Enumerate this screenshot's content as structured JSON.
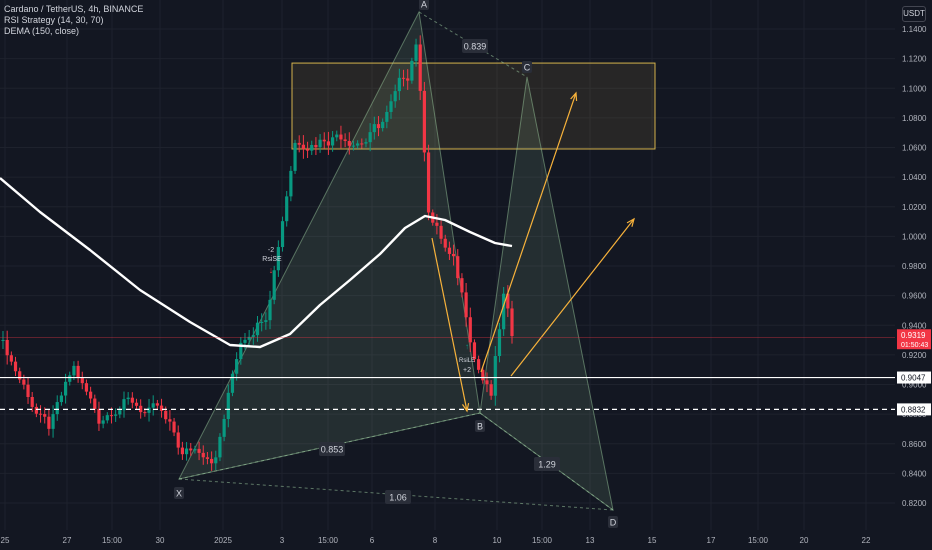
{
  "header": {
    "title": "Cardano / TetherUS, 4h, BINANCE",
    "indicator1": "RSI Strategy (14, 30, 70)",
    "indicator2": "DEMA (150, close)",
    "currency": "USDT"
  },
  "chart_data": {
    "type": "candlestick",
    "y_axis": {
      "range": [
        0.81,
        1.16
      ],
      "ticks": [
        "1.1400",
        "1.1200",
        "1.1000",
        "1.0800",
        "1.0600",
        "1.0400",
        "1.0200",
        "1.0000",
        "0.9800",
        "0.9600",
        "0.9400",
        "0.9200",
        "0.9000",
        "0.8800",
        "0.8600",
        "0.8400",
        "0.8200"
      ]
    },
    "x_axis": {
      "ticks": [
        "25",
        "27",
        "15:00",
        "30",
        "2025",
        "3",
        "15:00",
        "6",
        "8",
        "10",
        "15:00",
        "13",
        "15",
        "17",
        "15:00",
        "20",
        "22"
      ]
    },
    "price_labels": [
      {
        "value": 0.9319,
        "text": "0.9319",
        "sub": "01:50:43",
        "color": "#f23645"
      },
      {
        "value": 0.9047,
        "text": "0.9047",
        "color": "#ffffff"
      },
      {
        "value": 0.8832,
        "text": "0.8832",
        "color": "#ffffff"
      }
    ],
    "horizontal_lines": [
      {
        "value": 0.9047,
        "style": "solid",
        "color": "#ffffff"
      },
      {
        "value": 0.8832,
        "style": "dashed",
        "color": "#ffffff"
      }
    ],
    "harmonic_points": [
      {
        "label": "X",
        "value": 0.8335
      },
      {
        "label": "A",
        "value": 1.157
      },
      {
        "label": "B",
        "value": 0.879
      },
      {
        "label": "C",
        "value": 1.106
      },
      {
        "label": "D",
        "value": 0.8175
      }
    ],
    "ratios": [
      "0.839",
      "0.853",
      "1.29",
      "1.06"
    ],
    "supply_zone": {
      "top": 1.117,
      "bottom": 1.059
    },
    "signals": [
      {
        "label": "RsiSE",
        "count": "-2"
      },
      {
        "label": "RsiLE",
        "count": "+2"
      }
    ],
    "colors": {
      "up": "#089981",
      "down": "#f23645",
      "dema": "#ffffff",
      "projection": "#f7b23b",
      "pattern": "#a5d6a7",
      "zone": "#d4b24c"
    }
  }
}
